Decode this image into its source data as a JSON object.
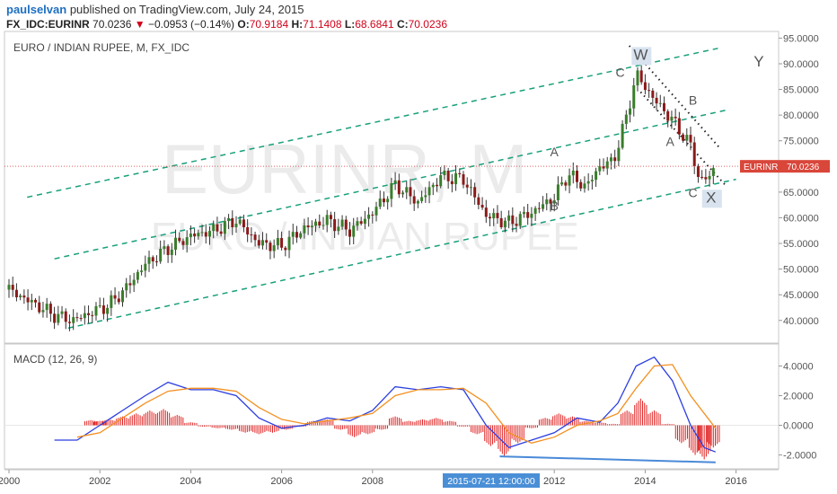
{
  "header": {
    "user": "paulselvan",
    "published_text": "published on TradingView.com, July 24, 2015",
    "symbol": "FX_IDC:EURINR",
    "last": "70.0236",
    "arrow": "▼",
    "change": "−0.0953 (−0.14%)",
    "o_label": "O:",
    "o_value": "70.9184",
    "h_label": "H:",
    "h_value": "71.1408",
    "l_label": "L:",
    "l_value": "68.6841",
    "c_label": "C:",
    "c_value": "70.0236"
  },
  "chart_data": [
    {
      "type": "candlestick",
      "title": "EURO / INDIAN RUPEE, M, FX_IDC",
      "watermark_symbol": "EURINR, M",
      "watermark_name": "EURO / INDIAN RUPEE",
      "x_ticks": [
        "2000",
        "2002",
        "2004",
        "2006",
        "2008",
        "2012",
        "2014",
        "2016"
      ],
      "x_range": [
        2000.0,
        2016.8
      ],
      "y_ticks": [
        "40.0000",
        "45.0000",
        "50.0000",
        "55.0000",
        "60.0000",
        "65.0000",
        "70.0000",
        "75.0000",
        "80.0000",
        "85.0000",
        "90.0000",
        "95.0000"
      ],
      "ylim": [
        36.5,
        95.5
      ],
      "price_label": "EURINR",
      "price_value": "70.0236",
      "price_level": 70.0236,
      "series": [
        {
          "name": "EURINR",
          "approx_close_path": [
            [
              2000.0,
              46.0
            ],
            [
              2000.5,
              43.5
            ],
            [
              2001.0,
              41.0
            ],
            [
              2001.4,
              40.0
            ],
            [
              2001.8,
              41.5
            ],
            [
              2002.2,
              43.0
            ],
            [
              2002.6,
              46.5
            ],
            [
              2003.0,
              51.0
            ],
            [
              2003.5,
              54.0
            ],
            [
              2004.0,
              56.5
            ],
            [
              2004.5,
              57.5
            ],
            [
              2005.0,
              59.5
            ],
            [
              2005.5,
              55.0
            ],
            [
              2006.0,
              54.5
            ],
            [
              2006.5,
              58.0
            ],
            [
              2007.0,
              59.5
            ],
            [
              2007.5,
              57.5
            ],
            [
              2008.0,
              61.0
            ],
            [
              2008.5,
              66.5
            ],
            [
              2009.0,
              63.0
            ],
            [
              2009.5,
              68.0
            ],
            [
              2010.0,
              67.5
            ],
            [
              2010.5,
              60.5
            ],
            [
              2011.0,
              59.0
            ],
            [
              2011.5,
              61.0
            ],
            [
              2012.0,
              64.0
            ],
            [
              2012.3,
              68.5
            ],
            [
              2012.7,
              66.0
            ],
            [
              2013.0,
              70.0
            ],
            [
              2013.3,
              71.0
            ],
            [
              2013.6,
              80.0
            ],
            [
              2013.8,
              88.0
            ],
            [
              2014.2,
              83.0
            ],
            [
              2014.6,
              79.0
            ],
            [
              2015.0,
              74.0
            ],
            [
              2015.2,
              67.0
            ],
            [
              2015.4,
              68.0
            ],
            [
              2015.55,
              70.0
            ]
          ]
        }
      ],
      "annotations": [
        "C",
        "W",
        "B",
        "A",
        "A",
        "B",
        "C",
        "X",
        "Y"
      ]
    },
    {
      "type": "line",
      "title": "MACD (12, 26, 9)",
      "y_ticks": [
        "4.0000",
        "2.0000",
        "0.0000",
        "-2.0000"
      ],
      "ylim": [
        -3.0,
        5.0
      ],
      "cursor_label": "2015-07-21 12:00:00",
      "series": [
        {
          "name": "MACD",
          "color": "#2b3ee0",
          "points": [
            [
              2001.0,
              -1.0
            ],
            [
              2001.5,
              -1.0
            ],
            [
              2002.0,
              0.0
            ],
            [
              2002.5,
              1.0
            ],
            [
              2003.0,
              2.0
            ],
            [
              2003.5,
              2.9
            ],
            [
              2004.0,
              2.4
            ],
            [
              2004.5,
              2.4
            ],
            [
              2005.0,
              2.0
            ],
            [
              2005.5,
              0.5
            ],
            [
              2006.0,
              -0.2
            ],
            [
              2006.5,
              0.0
            ],
            [
              2007.0,
              0.5
            ],
            [
              2007.5,
              0.3
            ],
            [
              2008.0,
              1.0
            ],
            [
              2008.5,
              2.6
            ],
            [
              2009.0,
              2.4
            ],
            [
              2009.5,
              2.6
            ],
            [
              2010.0,
              2.4
            ],
            [
              2010.5,
              0.0
            ],
            [
              2011.0,
              -1.5
            ],
            [
              2011.5,
              -1.0
            ],
            [
              2012.0,
              -0.5
            ],
            [
              2012.5,
              0.5
            ],
            [
              2013.0,
              0.2
            ],
            [
              2013.4,
              1.5
            ],
            [
              2013.8,
              4.0
            ],
            [
              2014.2,
              4.6
            ],
            [
              2014.6,
              3.0
            ],
            [
              2015.0,
              0.0
            ],
            [
              2015.3,
              -1.5
            ],
            [
              2015.55,
              -1.8
            ]
          ]
        },
        {
          "name": "Signal",
          "color": "#f39020",
          "points": [
            [
              2001.5,
              -0.8
            ],
            [
              2002.0,
              -0.5
            ],
            [
              2002.5,
              0.5
            ],
            [
              2003.0,
              1.5
            ],
            [
              2003.5,
              2.3
            ],
            [
              2004.0,
              2.5
            ],
            [
              2004.5,
              2.5
            ],
            [
              2005.0,
              2.3
            ],
            [
              2005.5,
              1.2
            ],
            [
              2006.0,
              0.4
            ],
            [
              2006.5,
              0.1
            ],
            [
              2007.0,
              0.3
            ],
            [
              2007.5,
              0.5
            ],
            [
              2008.0,
              0.8
            ],
            [
              2008.5,
              2.0
            ],
            [
              2009.0,
              2.4
            ],
            [
              2009.5,
              2.4
            ],
            [
              2010.0,
              2.5
            ],
            [
              2010.5,
              1.5
            ],
            [
              2011.0,
              -0.5
            ],
            [
              2011.5,
              -1.2
            ],
            [
              2012.0,
              -0.8
            ],
            [
              2012.5,
              0.0
            ],
            [
              2013.0,
              0.3
            ],
            [
              2013.4,
              0.8
            ],
            [
              2013.8,
              2.5
            ],
            [
              2014.2,
              4.0
            ],
            [
              2014.6,
              4.1
            ],
            [
              2015.0,
              2.0
            ],
            [
              2015.55,
              -0.2
            ]
          ]
        }
      ],
      "histogram": [
        [
          2001.8,
          0.35
        ],
        [
          2002.0,
          0.3
        ],
        [
          2002.2,
          0.4
        ],
        [
          2002.5,
          0.6
        ],
        [
          2002.8,
          0.8
        ],
        [
          2003.1,
          1.0
        ],
        [
          2003.4,
          1.1
        ],
        [
          2003.7,
          0.7
        ],
        [
          2004.0,
          0.2
        ],
        [
          2004.3,
          -0.1
        ],
        [
          2004.6,
          -0.2
        ],
        [
          2004.9,
          -0.3
        ],
        [
          2005.2,
          -0.5
        ],
        [
          2005.5,
          -0.6
        ],
        [
          2005.8,
          -0.5
        ],
        [
          2006.1,
          -0.3
        ],
        [
          2006.4,
          -0.1
        ],
        [
          2006.7,
          0.3
        ],
        [
          2007.0,
          0.4
        ],
        [
          2007.3,
          -0.3
        ],
        [
          2007.6,
          -0.8
        ],
        [
          2007.9,
          -0.6
        ],
        [
          2008.2,
          -0.3
        ],
        [
          2008.5,
          0.6
        ],
        [
          2008.8,
          0.3
        ],
        [
          2009.1,
          0.4
        ],
        [
          2009.4,
          0.5
        ],
        [
          2009.7,
          0.3
        ],
        [
          2010.0,
          -0.1
        ],
        [
          2010.3,
          -0.6
        ],
        [
          2010.6,
          -1.4
        ],
        [
          2010.9,
          -2.1
        ],
        [
          2011.2,
          -1.2
        ],
        [
          2011.5,
          -0.2
        ],
        [
          2011.8,
          0.5
        ],
        [
          2012.1,
          0.8
        ],
        [
          2012.4,
          0.6
        ],
        [
          2012.7,
          0.3
        ],
        [
          2013.0,
          0.2
        ],
        [
          2013.3,
          0.1
        ],
        [
          2013.6,
          1.0
        ],
        [
          2013.9,
          1.8
        ],
        [
          2014.2,
          1.0
        ],
        [
          2014.5,
          0.1
        ],
        [
          2014.8,
          -1.2
        ],
        [
          2015.1,
          -2.0
        ],
        [
          2015.3,
          -2.3
        ],
        [
          2015.5,
          -1.5
        ]
      ]
    }
  ]
}
